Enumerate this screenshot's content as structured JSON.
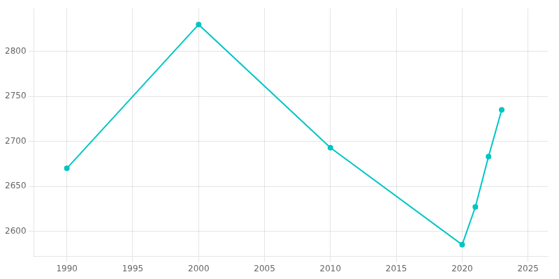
{
  "chart_data": {
    "type": "line",
    "x": [
      1990,
      2000,
      2010,
      2020,
      2021,
      2022,
      2023
    ],
    "values": [
      2670,
      2830,
      2693,
      2585,
      2627,
      2683,
      2735
    ],
    "color": "#00C5C5",
    "marker": "circle",
    "xlim": [
      1987.5,
      2026.5
    ],
    "ylim": [
      2572,
      2848
    ],
    "xticks": [
      1990,
      1995,
      2000,
      2005,
      2010,
      2015,
      2020,
      2025
    ],
    "yticks": [
      2600,
      2650,
      2700,
      2750,
      2800
    ],
    "grid": true
  }
}
